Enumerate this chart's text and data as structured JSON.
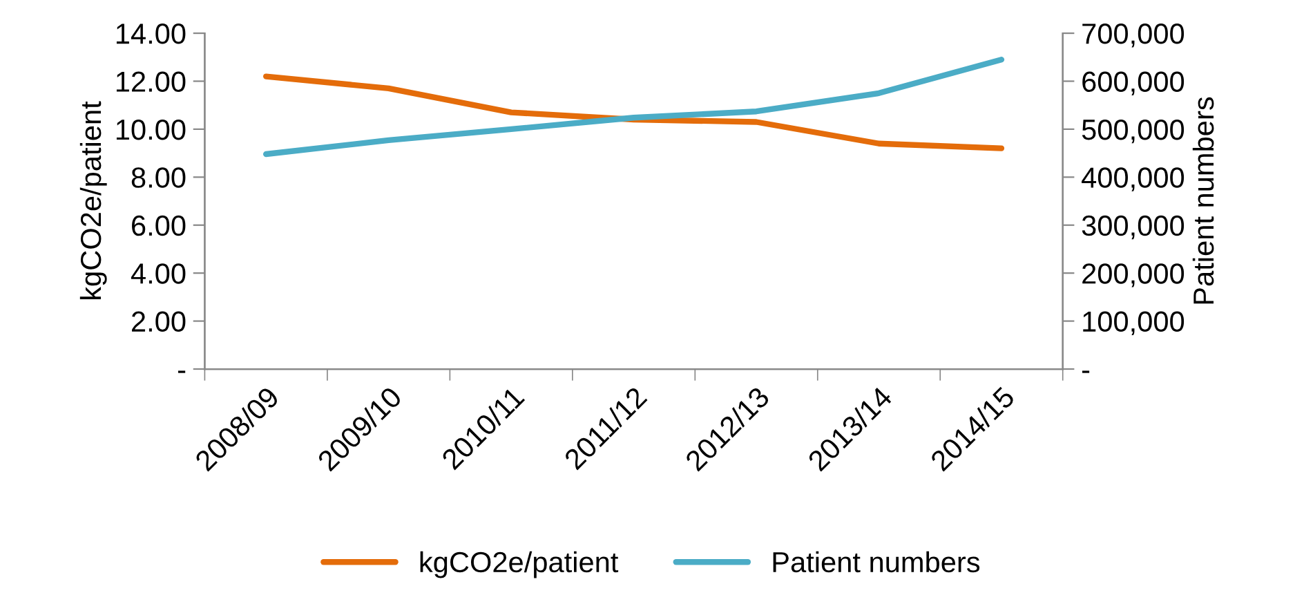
{
  "chart_data": {
    "type": "line",
    "categories": [
      "2008/09",
      "2009/10",
      "2010/11",
      "2011/12",
      "2012/13",
      "2013/14",
      "2014/15"
    ],
    "series": [
      {
        "name": "kgCO2e/patient",
        "color": "#e46c0a",
        "values": [
          12.2,
          11.7,
          10.7,
          10.4,
          10.3,
          9.4,
          9.2
        ]
      },
      {
        "name": "Patient numbers",
        "color": "#4bacc6",
        "axis": "y2",
        "values": [
          448000,
          477000,
          500000,
          524000,
          537000,
          575000,
          645000
        ]
      }
    ],
    "ylabel": "kgCO2e/patient",
    "y2label": "Patient numbers",
    "ylim": [
      0,
      14
    ],
    "yticks": [
      {
        "value": 0,
        "label": "-"
      },
      {
        "value": 2,
        "label": "2.00"
      },
      {
        "value": 4,
        "label": "4.00"
      },
      {
        "value": 6,
        "label": "6.00"
      },
      {
        "value": 8,
        "label": "8.00"
      },
      {
        "value": 10,
        "label": "10.00"
      },
      {
        "value": 12,
        "label": "12.00"
      },
      {
        "value": 14,
        "label": "14.00"
      }
    ],
    "y2lim": [
      0,
      700000
    ],
    "y2ticks": [
      {
        "value": 0,
        "label": "-"
      },
      {
        "value": 100000,
        "label": "100,000"
      },
      {
        "value": 200000,
        "label": "200,000"
      },
      {
        "value": 300000,
        "label": "300,000"
      },
      {
        "value": 400000,
        "label": "400,000"
      },
      {
        "value": 500000,
        "label": "500,000"
      },
      {
        "value": 600000,
        "label": "600,000"
      },
      {
        "value": 700000,
        "label": "700,000"
      }
    ],
    "grid": false,
    "legend": "bottom",
    "marker": "none",
    "line_style": "solid"
  }
}
